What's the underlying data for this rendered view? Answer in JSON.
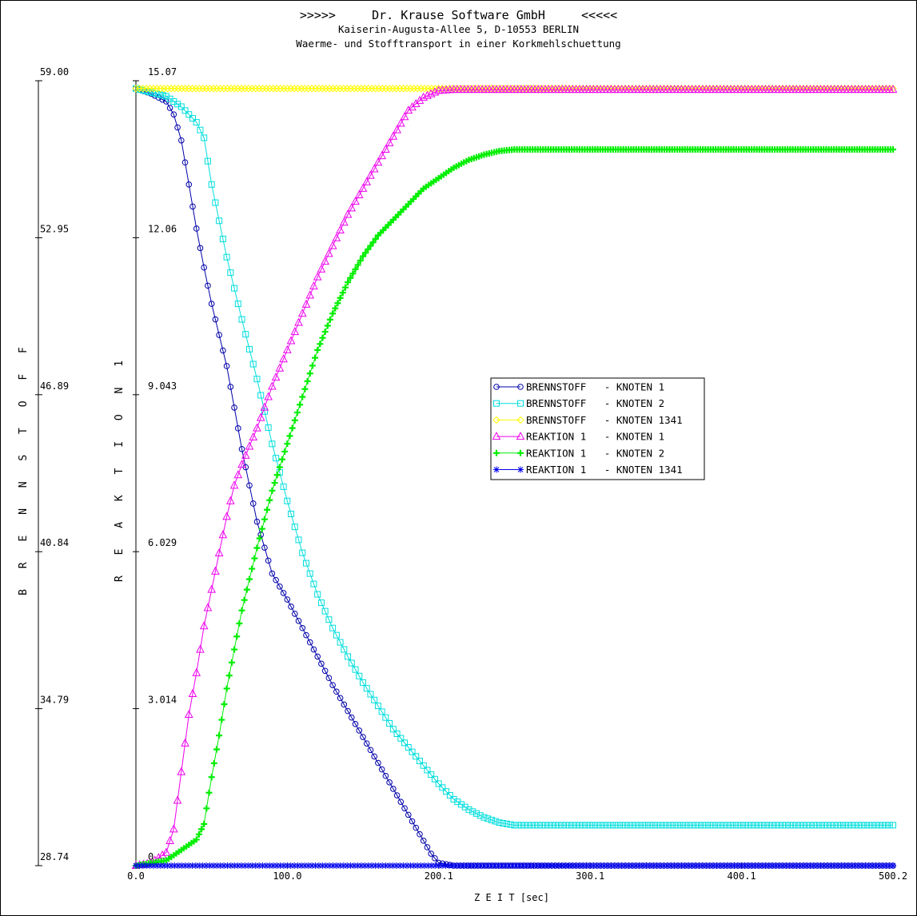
{
  "header": {
    "line1": ">>>>>     Dr. Krause Software GmbH     <<<<<",
    "line2": "Kaiserin-Augusta-Allee 5, D-10553 BERLIN",
    "line3": "Waerme- und Stofftransport in einer Korkmehlschuettung"
  },
  "chart_data": {
    "type": "line",
    "xlabel": "Z E I T [sec]",
    "ylabel_left": "B R E N N S T O F F",
    "ylabel_right": "R E A K T I O N 1",
    "xlim": [
      0.0,
      500.2
    ],
    "ylim_left": [
      28.74,
      59.0
    ],
    "ylim_right": [
      0,
      15.07
    ],
    "x_ticks": [
      "0.0",
      "100.0",
      "200.1",
      "300.1",
      "400.1",
      "500.2"
    ],
    "y_ticks_left": [
      "28.74",
      "34.79",
      "40.84",
      "46.89",
      "52.95",
      "59.00"
    ],
    "y_ticks_right": [
      "0",
      "3.014",
      "6.029",
      "9.043",
      "12.06",
      "15.07"
    ],
    "grid": false,
    "legend_position": "center-right",
    "series": [
      {
        "name": "BRENNSTOFF   - KNOTEN 1",
        "axis": "left",
        "color": "#0000aa",
        "marker": "circle",
        "points": [
          [
            0,
            58.7
          ],
          [
            10,
            58.5
          ],
          [
            20,
            58.2
          ],
          [
            25,
            57.7
          ],
          [
            30,
            56.7
          ],
          [
            35,
            55.0
          ],
          [
            40,
            53.3
          ],
          [
            45,
            51.8
          ],
          [
            50,
            50.4
          ],
          [
            55,
            49.2
          ],
          [
            60,
            48.0
          ],
          [
            65,
            46.4
          ],
          [
            70,
            44.8
          ],
          [
            75,
            43.4
          ],
          [
            80,
            42.0
          ],
          [
            90,
            40.0
          ],
          [
            100,
            39.0
          ],
          [
            110,
            37.9
          ],
          [
            120,
            36.8
          ],
          [
            130,
            35.7
          ],
          [
            140,
            34.7
          ],
          [
            150,
            33.7
          ],
          [
            160,
            32.7
          ],
          [
            170,
            31.7
          ],
          [
            180,
            30.7
          ],
          [
            190,
            29.7
          ],
          [
            195,
            29.2
          ],
          [
            200,
            28.85
          ],
          [
            210,
            28.74
          ],
          [
            250,
            28.74
          ],
          [
            300,
            28.74
          ],
          [
            400,
            28.74
          ],
          [
            500.2,
            28.74
          ]
        ]
      },
      {
        "name": "BRENNSTOFF   - KNOTEN 2",
        "axis": "left",
        "color": "#00dddd",
        "marker": "square",
        "points": [
          [
            0,
            58.7
          ],
          [
            20,
            58.4
          ],
          [
            30,
            58.0
          ],
          [
            40,
            57.4
          ],
          [
            45,
            56.8
          ],
          [
            50,
            55.0
          ],
          [
            55,
            53.6
          ],
          [
            60,
            52.2
          ],
          [
            70,
            49.8
          ],
          [
            80,
            47.5
          ],
          [
            90,
            45.0
          ],
          [
            100,
            42.8
          ],
          [
            110,
            40.8
          ],
          [
            120,
            39.2
          ],
          [
            130,
            37.9
          ],
          [
            140,
            36.8
          ],
          [
            150,
            35.8
          ],
          [
            160,
            34.9
          ],
          [
            170,
            34.0
          ],
          [
            180,
            33.3
          ],
          [
            190,
            32.6
          ],
          [
            200,
            31.9
          ],
          [
            210,
            31.3
          ],
          [
            220,
            30.9
          ],
          [
            230,
            30.6
          ],
          [
            240,
            30.4
          ],
          [
            250,
            30.3
          ],
          [
            300,
            30.3
          ],
          [
            400,
            30.3
          ],
          [
            500.2,
            30.3
          ]
        ]
      },
      {
        "name": "BRENNSTOFF   - KNOTEN 1341",
        "axis": "left",
        "color": "#ffff00",
        "marker": "diamond",
        "points": [
          [
            0,
            58.7
          ],
          [
            100,
            58.7
          ],
          [
            200,
            58.7
          ],
          [
            300,
            58.7
          ],
          [
            400,
            58.7
          ],
          [
            500.2,
            58.7
          ]
        ]
      },
      {
        "name": "REAKTION 1   - KNOTEN 1",
        "axis": "right",
        "color": "#ee00ee",
        "marker": "triangle",
        "points": [
          [
            0,
            0
          ],
          [
            10,
            0.05
          ],
          [
            20,
            0.25
          ],
          [
            25,
            0.7
          ],
          [
            30,
            1.8
          ],
          [
            35,
            2.9
          ],
          [
            40,
            3.7
          ],
          [
            45,
            4.6
          ],
          [
            50,
            5.3
          ],
          [
            55,
            6.0
          ],
          [
            60,
            6.7
          ],
          [
            65,
            7.3
          ],
          [
            70,
            7.7
          ],
          [
            80,
            8.4
          ],
          [
            90,
            9.2
          ],
          [
            100,
            9.9
          ],
          [
            110,
            10.6
          ],
          [
            120,
            11.3
          ],
          [
            130,
            11.9
          ],
          [
            140,
            12.5
          ],
          [
            150,
            13.0
          ],
          [
            160,
            13.5
          ],
          [
            170,
            14.0
          ],
          [
            180,
            14.5
          ],
          [
            190,
            14.75
          ],
          [
            200,
            14.88
          ],
          [
            210,
            14.9
          ],
          [
            250,
            14.9
          ],
          [
            300,
            14.9
          ],
          [
            400,
            14.9
          ],
          [
            500.2,
            14.9
          ]
        ]
      },
      {
        "name": "REAKTION 1   - KNOTEN 2",
        "axis": "right",
        "color": "#00ee00",
        "marker": "plus",
        "points": [
          [
            0,
            0
          ],
          [
            20,
            0.1
          ],
          [
            30,
            0.3
          ],
          [
            40,
            0.5
          ],
          [
            45,
            0.8
          ],
          [
            50,
            1.7
          ],
          [
            55,
            2.5
          ],
          [
            60,
            3.4
          ],
          [
            70,
            4.9
          ],
          [
            80,
            6.1
          ],
          [
            90,
            7.2
          ],
          [
            100,
            8.1
          ],
          [
            110,
            9.0
          ],
          [
            120,
            9.9
          ],
          [
            130,
            10.6
          ],
          [
            140,
            11.2
          ],
          [
            150,
            11.7
          ],
          [
            160,
            12.1
          ],
          [
            170,
            12.4
          ],
          [
            180,
            12.7
          ],
          [
            190,
            13.0
          ],
          [
            200,
            13.2
          ],
          [
            210,
            13.4
          ],
          [
            220,
            13.55
          ],
          [
            230,
            13.65
          ],
          [
            240,
            13.72
          ],
          [
            250,
            13.75
          ],
          [
            300,
            13.75
          ],
          [
            400,
            13.75
          ],
          [
            500.2,
            13.75
          ]
        ]
      },
      {
        "name": "REAKTION 1   - KNOTEN 1341",
        "axis": "right",
        "color": "#0000ee",
        "marker": "asterisk",
        "points": [
          [
            0,
            0
          ],
          [
            100,
            0
          ],
          [
            200,
            0
          ],
          [
            300,
            0
          ],
          [
            400,
            0
          ],
          [
            500.2,
            0
          ]
        ]
      }
    ]
  }
}
